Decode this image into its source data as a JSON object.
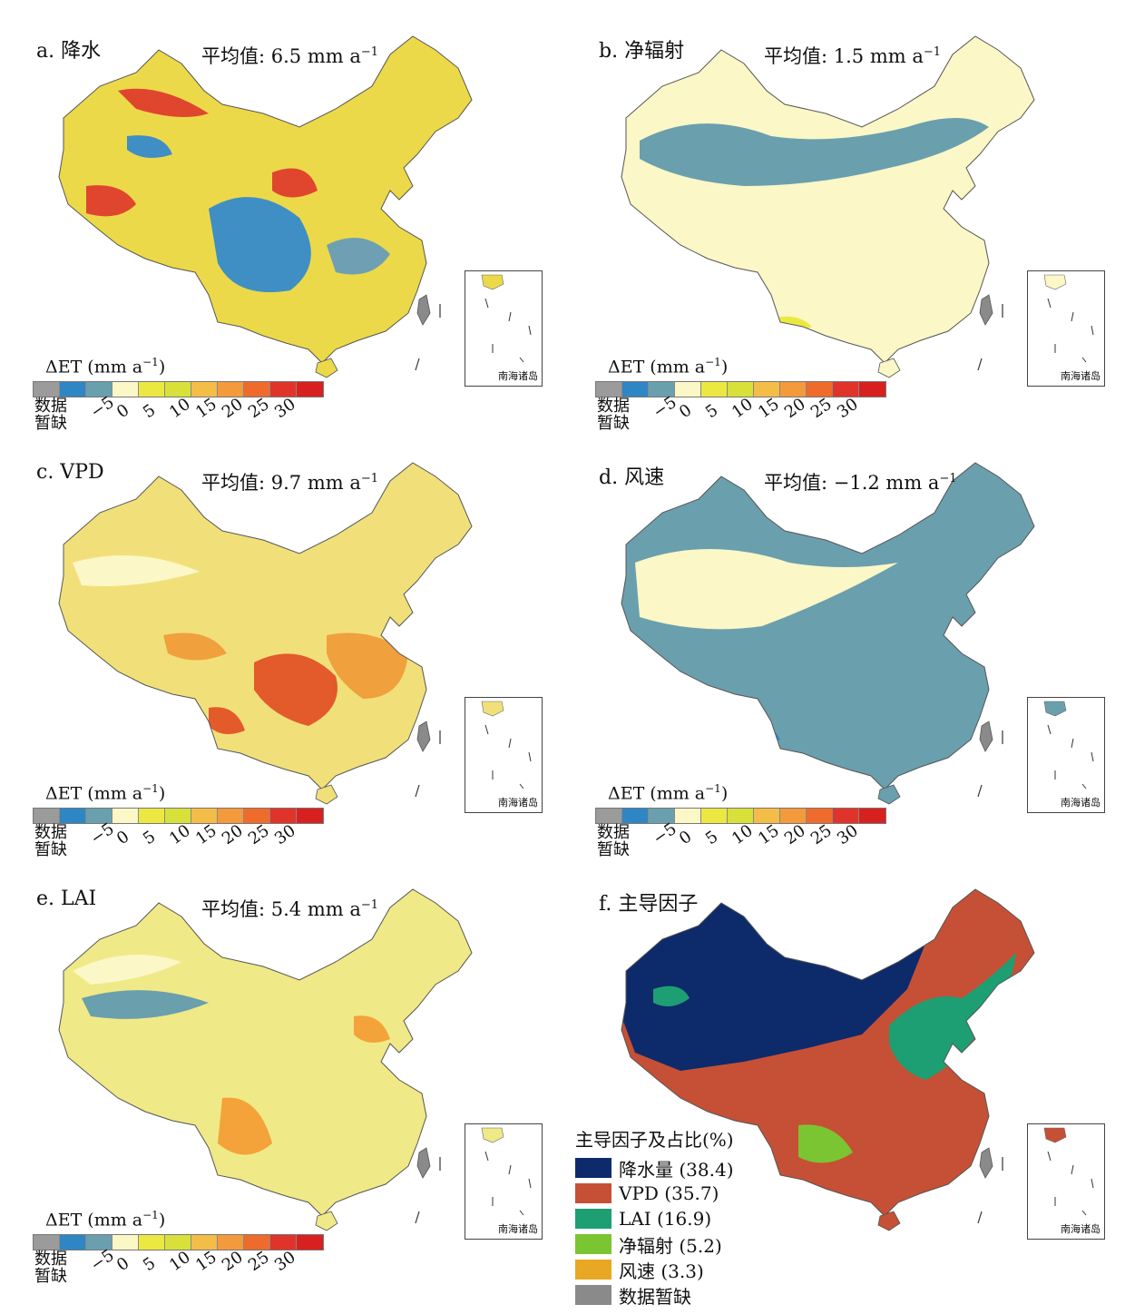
{
  "panels": [
    {
      "label": "a. 降水",
      "mean_prefix": "平均值: 6.5 mm a",
      "mean_sup": "−1",
      "inset_label": "南海诸岛",
      "legend_title": "ΔET (mm a",
      "legend_sup": "−1",
      "legend_close": ")"
    },
    {
      "label": "b. 净辐射",
      "mean_prefix": "平均值: 1.5 mm a",
      "mean_sup": "−1",
      "inset_label": "南海诸岛",
      "legend_title": "ΔET (mm a",
      "legend_sup": "−1",
      "legend_close": ")"
    },
    {
      "label": "c. VPD",
      "mean_prefix": "平均值: 9.7 mm a",
      "mean_sup": "−1",
      "inset_label": "南海诸岛",
      "legend_title": "ΔET (mm a",
      "legend_sup": "−1",
      "legend_close": ")"
    },
    {
      "label": "d. 风速",
      "mean_prefix": "平均值: −1.2 mm a",
      "mean_sup": "−1",
      "inset_label": "南海诸岛",
      "legend_title": "ΔET (mm a",
      "legend_sup": "−1",
      "legend_close": ")"
    },
    {
      "label": "e. LAI",
      "mean_prefix": "平均值: 5.4 mm a",
      "mean_sup": "−1",
      "inset_label": "南海诸岛",
      "legend_title": "ΔET (mm a",
      "legend_sup": "−1",
      "legend_close": ")"
    },
    {
      "label": "f. 主导因子",
      "inset_label": "南海诸岛"
    }
  ],
  "colorbar": {
    "nodata_label": "数据暂缺",
    "ticks": [
      "−5",
      "0",
      "5",
      "10",
      "15",
      "20",
      "25",
      "30"
    ],
    "colors": [
      "#9b9b9b",
      "#2f86c4",
      "#6a9fae",
      "#fbf7c6",
      "#ece842",
      "#d7e13a",
      "#f3bd48",
      "#f39a3c",
      "#ef6b2c",
      "#e0332a",
      "#d82020"
    ]
  },
  "dominant_legend": {
    "title": "主导因子及占比(%)",
    "items": [
      {
        "label": "降水量 (38.4)",
        "color": "#0d2a6b"
      },
      {
        "label": "VPD (35.7)",
        "color": "#c65035"
      },
      {
        "label": "LAI (16.9)",
        "color": "#1e9e73"
      },
      {
        "label": "净辐射 (5.2)",
        "color": "#7ac531"
      },
      {
        "label": "风速 (3.3)",
        "color": "#e8a823"
      },
      {
        "label": "数据暂缺",
        "color": "#8a8a8a"
      }
    ]
  },
  "map_colors": {
    "a": {
      "base": "#ecd94a",
      "blob1": "#3f8fc4",
      "blob2": "#e0462e",
      "blob3": "#6f9fb3"
    },
    "b": {
      "base": "#fbf7c6",
      "blob1": "#6a9fae",
      "blob2": "#6a9fae",
      "blob3": "#ece842"
    },
    "c": {
      "base": "#f1e07a",
      "blob1": "#e35a2b",
      "blob2": "#f0a03c",
      "blob3": "#fbf7c6"
    },
    "d": {
      "base": "#6a9fae",
      "blob1": "#fbf7c6",
      "blob2": "#fbf7c6",
      "blob3": "#2f86c4"
    },
    "e": {
      "base": "#f0e987",
      "blob1": "#6a9fae",
      "blob2": "#f3a33a",
      "blob3": "#fbf7c6"
    },
    "f": {
      "base": "#c65035",
      "blob1": "#0d2a6b",
      "blob2": "#1e9e73",
      "blob3": "#7ac531"
    }
  }
}
